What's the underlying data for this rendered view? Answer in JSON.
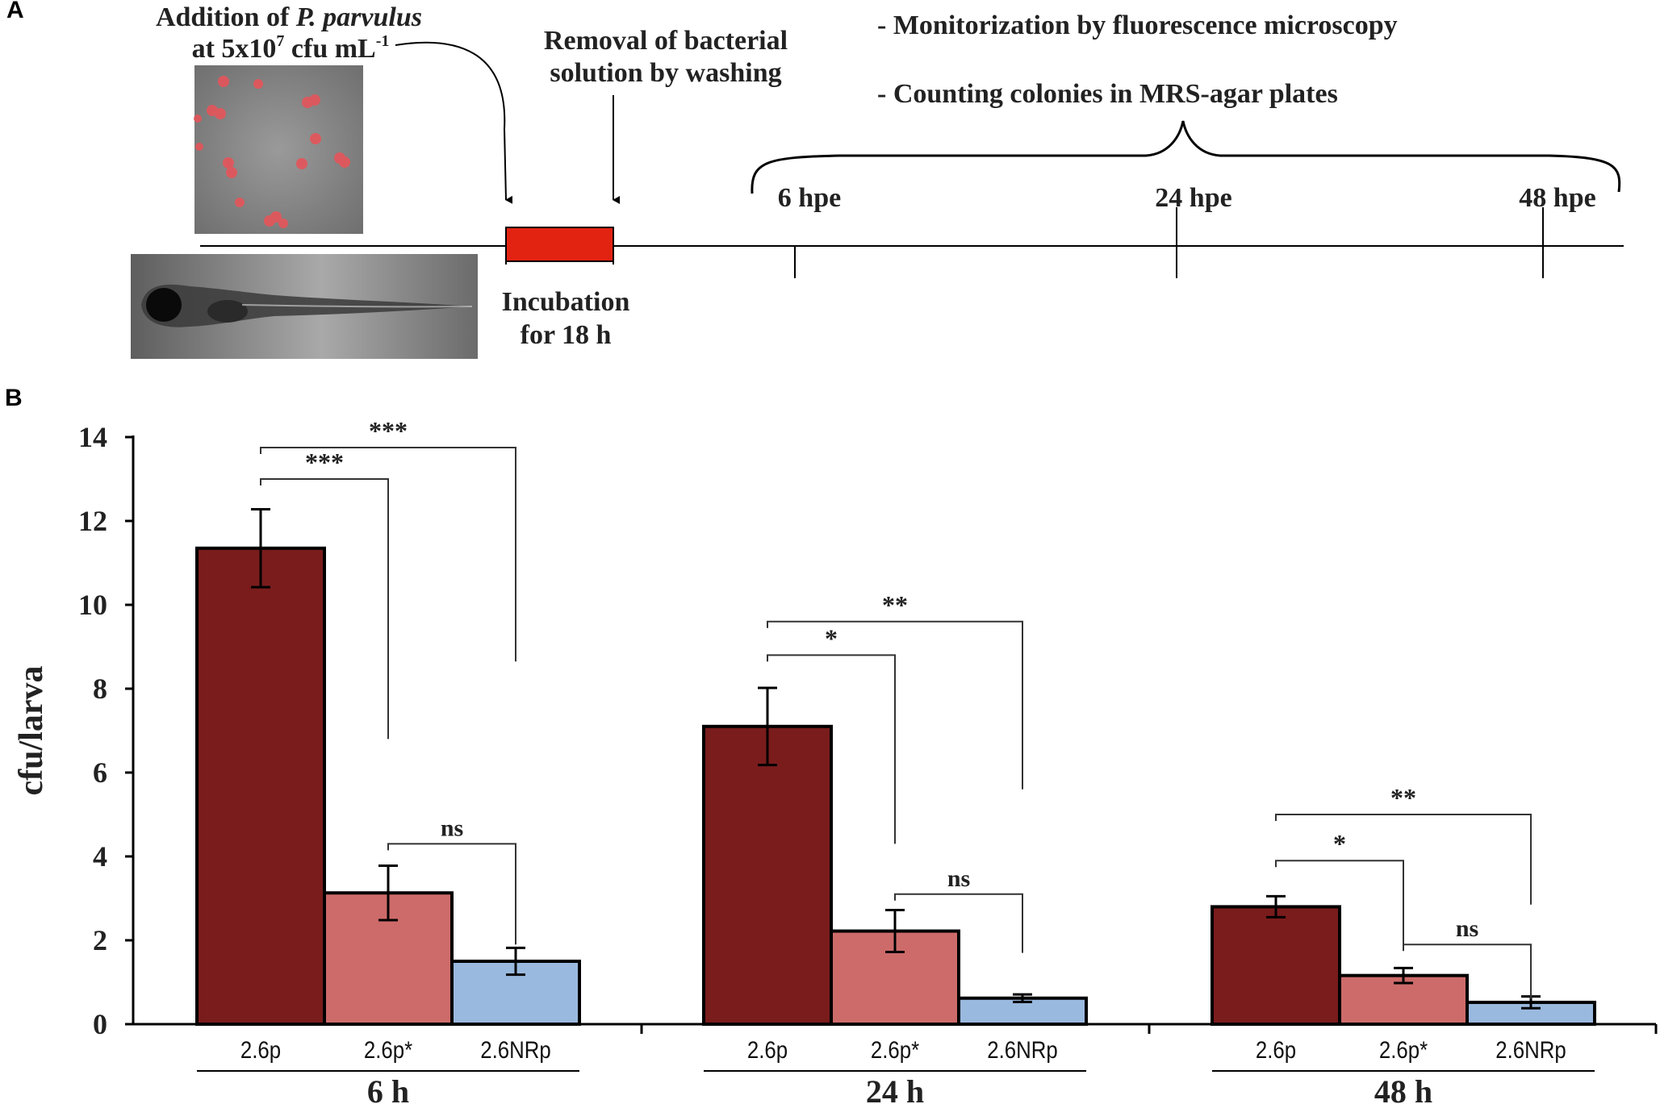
{
  "panel_a": {
    "label": "A",
    "addition_line1_prefix": "Addition of ",
    "addition_line1_species": "P. parvulus",
    "addition_line2_prefix": "at 5x10",
    "addition_line2_exp": "7",
    "addition_line2_mid": " cfu mL",
    "addition_line2_unit_exp": "-1",
    "removal_line1": "Removal of bacterial",
    "removal_line2": "solution by washing",
    "incubation_line1": "Incubation",
    "incubation_line2": "for 18 h",
    "monitor_1": "- Monitorization by fluorescence microscopy",
    "monitor_2": "- Counting colonies in MRS-agar plates",
    "timepoints": [
      "6 hpe",
      "24 hpe",
      "48 hpe"
    ],
    "incubation_color": "#e32312"
  },
  "panel_b": {
    "label": "B"
  },
  "chart_data": {
    "type": "bar",
    "title": "",
    "xlabel": "",
    "ylabel": "cfu/larva",
    "ylim": [
      0,
      14
    ],
    "yticks": [
      0,
      2,
      4,
      6,
      8,
      10,
      12,
      14
    ],
    "groups": [
      "6 h",
      "24 h",
      "48 h"
    ],
    "categories": [
      "2.6p",
      "2.6p*",
      "2.6NRp"
    ],
    "colors": [
      "#7a1c1c",
      "#cd6b6a",
      "#9ab9de"
    ],
    "series": [
      {
        "name": "2.6p",
        "values": [
          11.35,
          7.1,
          2.8
        ],
        "errors": [
          0.93,
          0.92,
          0.25
        ]
      },
      {
        "name": "2.6p*",
        "values": [
          3.13,
          2.22,
          1.16
        ],
        "errors": [
          0.65,
          0.5,
          0.18
        ]
      },
      {
        "name": "2.6NRp",
        "values": [
          1.5,
          0.62,
          0.52
        ],
        "errors": [
          0.32,
          0.09,
          0.14
        ]
      }
    ],
    "significance": [
      {
        "group": 0,
        "from": 0,
        "to": 1,
        "label": "***",
        "level": 13.0,
        "drop": 6.2
      },
      {
        "group": 0,
        "from": 0,
        "to": 2,
        "label": "***",
        "level": 13.75,
        "drop": 5.1
      },
      {
        "group": 0,
        "from": 1,
        "to": 2,
        "label": "ns",
        "level": 4.3,
        "drop": 2.4
      },
      {
        "group": 1,
        "from": 0,
        "to": 1,
        "label": "*",
        "level": 8.8,
        "drop": 4.5
      },
      {
        "group": 1,
        "from": 0,
        "to": 2,
        "label": "**",
        "level": 9.6,
        "drop": 4.0
      },
      {
        "group": 1,
        "from": 1,
        "to": 2,
        "label": "ns",
        "level": 3.1,
        "drop": 1.4
      },
      {
        "group": 2,
        "from": 0,
        "to": 1,
        "label": "*",
        "level": 3.9,
        "drop": 2.1
      },
      {
        "group": 2,
        "from": 0,
        "to": 2,
        "label": "**",
        "level": 5.0,
        "drop": 2.15
      },
      {
        "group": 2,
        "from": 1,
        "to": 2,
        "label": "ns",
        "level": 1.9,
        "drop": 1.3
      }
    ]
  }
}
